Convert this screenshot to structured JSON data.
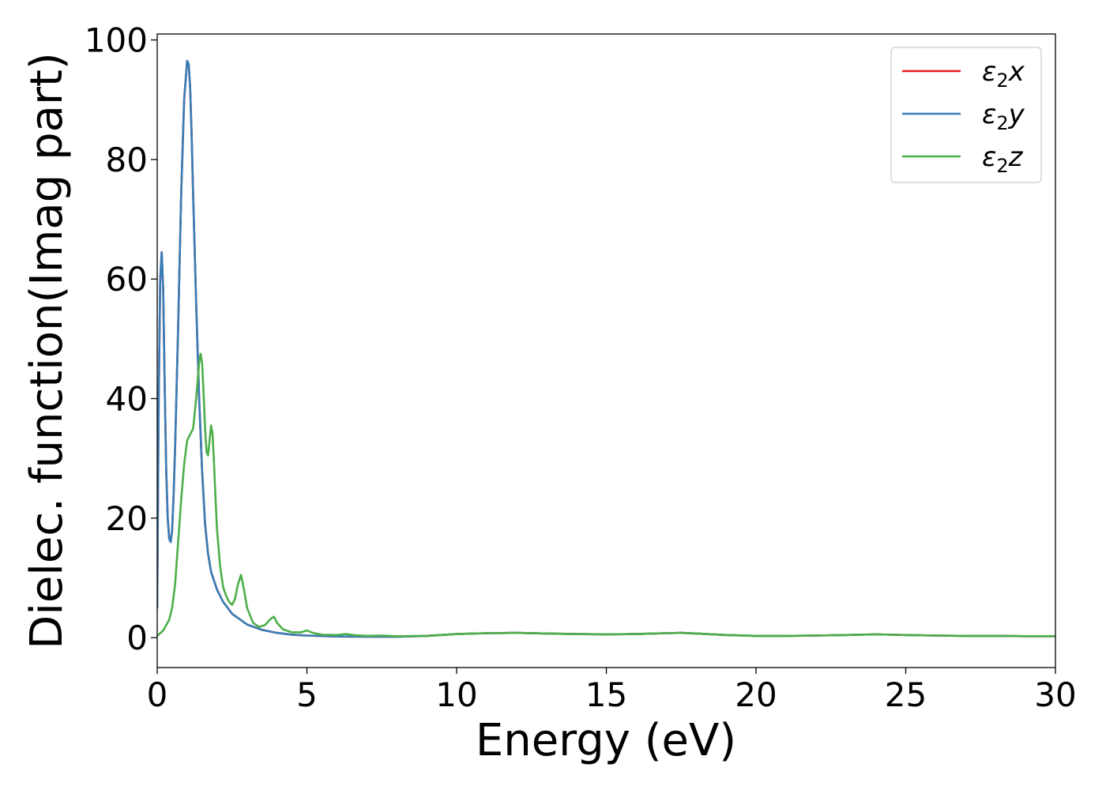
{
  "chart_data": {
    "type": "line",
    "title": "",
    "xlabel": "Energy (eV)",
    "ylabel": "Dielec. function(Imag part)",
    "xlim": [
      0,
      30
    ],
    "ylim": [
      -5,
      101
    ],
    "xticks": [
      0,
      5,
      10,
      15,
      20,
      25,
      30
    ],
    "xtick_labels": [
      "0",
      "5",
      "10",
      "15",
      "20",
      "25",
      "30"
    ],
    "yticks": [
      0,
      20,
      40,
      60,
      80,
      100
    ],
    "ytick_labels": [
      "0",
      "20",
      "40",
      "60",
      "80",
      "100"
    ],
    "grid": false,
    "legend": {
      "position": "top-right",
      "entries": [
        {
          "name": "ε₂x",
          "base": "ε",
          "sub": "2",
          "suffix": "x",
          "color": "#e41a1c"
        },
        {
          "name": "ε₂y",
          "base": "ε",
          "sub": "2",
          "suffix": "y",
          "color": "#377eb8"
        },
        {
          "name": "ε₂z",
          "base": "ε",
          "sub": "2",
          "suffix": "z",
          "color": "#4daf4a"
        }
      ]
    },
    "series": [
      {
        "name": "ε₂x",
        "color": "#e41a1c",
        "x": [
          0,
          0.05,
          0.1,
          0.15,
          0.2,
          0.25,
          0.3,
          0.35,
          0.4,
          0.45,
          0.5,
          0.55,
          0.6,
          0.7,
          0.8,
          0.9,
          1.0,
          1.05,
          1.1,
          1.15,
          1.2,
          1.3,
          1.4,
          1.5,
          1.6,
          1.7,
          1.8,
          2.0,
          2.2,
          2.5,
          3.0,
          3.5,
          4.0,
          4.5,
          5.0,
          6.0,
          7.0,
          8.0,
          9.0,
          10.0,
          11.0,
          12.0,
          13.0,
          14.0,
          15.0,
          16.0,
          17.0,
          17.5,
          18.0,
          19.0,
          20.0,
          21.0,
          22.0,
          23.0,
          24.0,
          25.0,
          26.0,
          27.0,
          28.0,
          29.0,
          30.0
        ],
        "y": [
          5,
          40,
          60,
          64.5,
          58,
          42,
          28,
          20,
          16.5,
          16,
          18,
          24,
          32,
          52,
          74,
          90,
          96.5,
          96,
          92,
          84,
          74,
          56,
          40,
          28,
          19,
          14,
          11,
          8,
          6,
          4,
          2.2,
          1.3,
          0.8,
          0.5,
          0.35,
          0.2,
          0.15,
          0.15,
          0.3,
          0.6,
          0.75,
          0.8,
          0.7,
          0.6,
          0.55,
          0.6,
          0.75,
          0.8,
          0.7,
          0.45,
          0.3,
          0.3,
          0.35,
          0.45,
          0.55,
          0.45,
          0.35,
          0.3,
          0.3,
          0.25,
          0.25
        ]
      },
      {
        "name": "ε₂y",
        "color": "#377eb8",
        "x": [
          0,
          0.05,
          0.1,
          0.15,
          0.2,
          0.25,
          0.3,
          0.35,
          0.4,
          0.45,
          0.5,
          0.55,
          0.6,
          0.7,
          0.8,
          0.9,
          1.0,
          1.05,
          1.1,
          1.15,
          1.2,
          1.3,
          1.4,
          1.5,
          1.6,
          1.7,
          1.8,
          2.0,
          2.2,
          2.5,
          3.0,
          3.5,
          4.0,
          4.5,
          5.0,
          6.0,
          7.0,
          8.0,
          9.0,
          10.0,
          11.0,
          12.0,
          13.0,
          14.0,
          15.0,
          16.0,
          17.0,
          17.5,
          18.0,
          19.0,
          20.0,
          21.0,
          22.0,
          23.0,
          24.0,
          25.0,
          26.0,
          27.0,
          28.0,
          29.0,
          30.0
        ],
        "y": [
          5,
          40,
          60,
          64.5,
          58,
          42,
          28,
          20,
          16.5,
          16,
          18,
          24,
          32,
          52,
          74,
          90,
          96.5,
          96,
          92,
          84,
          74,
          56,
          40,
          28,
          19,
          14,
          11,
          8,
          6,
          4,
          2.2,
          1.3,
          0.8,
          0.5,
          0.35,
          0.2,
          0.15,
          0.15,
          0.3,
          0.6,
          0.75,
          0.8,
          0.7,
          0.6,
          0.55,
          0.6,
          0.75,
          0.8,
          0.7,
          0.45,
          0.3,
          0.3,
          0.35,
          0.45,
          0.55,
          0.45,
          0.35,
          0.3,
          0.3,
          0.25,
          0.25
        ]
      },
      {
        "name": "ε₂z",
        "color": "#4daf4a",
        "x": [
          0,
          0.2,
          0.4,
          0.5,
          0.6,
          0.7,
          0.8,
          0.9,
          1.0,
          1.1,
          1.2,
          1.3,
          1.4,
          1.45,
          1.5,
          1.55,
          1.6,
          1.65,
          1.7,
          1.75,
          1.8,
          1.85,
          1.9,
          1.95,
          2.0,
          2.1,
          2.2,
          2.3,
          2.4,
          2.5,
          2.6,
          2.7,
          2.8,
          2.9,
          3.0,
          3.2,
          3.4,
          3.6,
          3.8,
          3.9,
          4.0,
          4.2,
          4.5,
          4.8,
          5.0,
          5.2,
          5.5,
          6.0,
          6.3,
          6.6,
          7.0,
          7.5,
          8.0,
          9.0,
          10.0,
          11.0,
          12.0,
          13.0,
          14.0,
          15.0,
          16.0,
          17.0,
          17.5,
          18.0,
          19.0,
          20.0,
          21.0,
          22.0,
          23.0,
          24.0,
          25.0,
          26.0,
          27.0,
          28.0,
          29.0,
          30.0
        ],
        "y": [
          0.3,
          1.2,
          3,
          5,
          9,
          16,
          23,
          29,
          33,
          34,
          35,
          40,
          46,
          47.5,
          46,
          41,
          35,
          31,
          30.5,
          33,
          35.5,
          34,
          29,
          23,
          18,
          12,
          8.5,
          7,
          6,
          5.5,
          6.5,
          9,
          10.5,
          8,
          5,
          2.5,
          1.8,
          2.1,
          3.2,
          3.5,
          2.5,
          1.4,
          0.9,
          0.9,
          1.2,
          0.8,
          0.5,
          0.45,
          0.6,
          0.4,
          0.3,
          0.35,
          0.25,
          0.3,
          0.6,
          0.75,
          0.8,
          0.7,
          0.6,
          0.55,
          0.6,
          0.75,
          0.8,
          0.7,
          0.45,
          0.3,
          0.3,
          0.35,
          0.45,
          0.55,
          0.45,
          0.35,
          0.3,
          0.3,
          0.25,
          0.25
        ]
      }
    ]
  }
}
